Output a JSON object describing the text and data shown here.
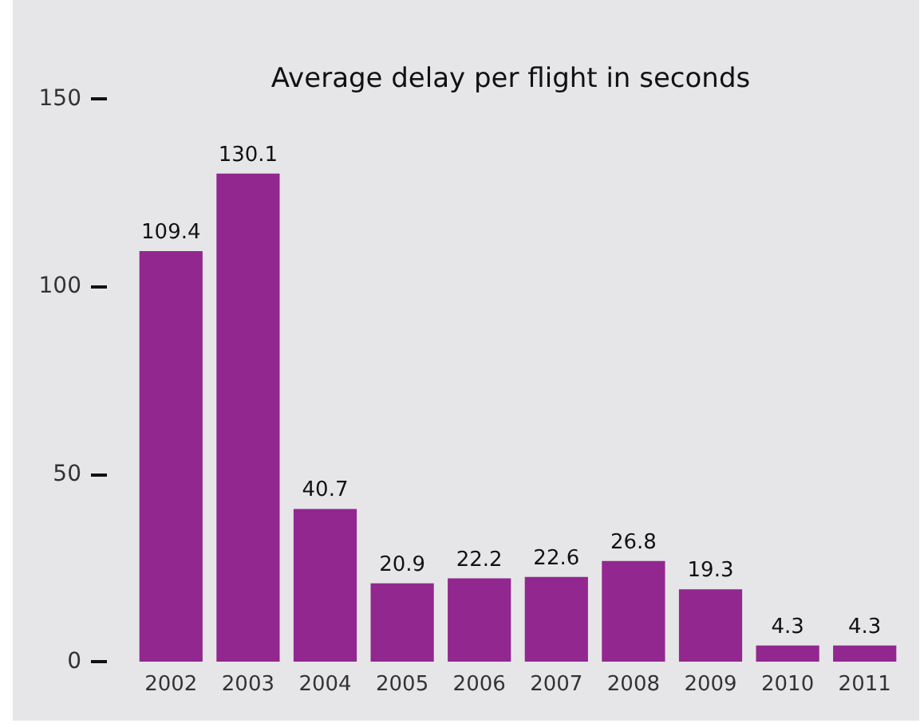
{
  "chart_data": {
    "type": "bar",
    "title": "Average delay per flight in seconds",
    "categories": [
      "2002",
      "2003",
      "2004",
      "2005",
      "2006",
      "2007",
      "2008",
      "2009",
      "2010",
      "2011"
    ],
    "values": [
      109.4,
      130.1,
      40.7,
      20.9,
      22.2,
      22.6,
      26.8,
      19.3,
      4.3,
      4.3
    ],
    "color": "#92278f",
    "ylim": [
      0,
      150
    ],
    "yticks": [
      0,
      50,
      100,
      150
    ],
    "grid": false,
    "data_labels": true
  }
}
